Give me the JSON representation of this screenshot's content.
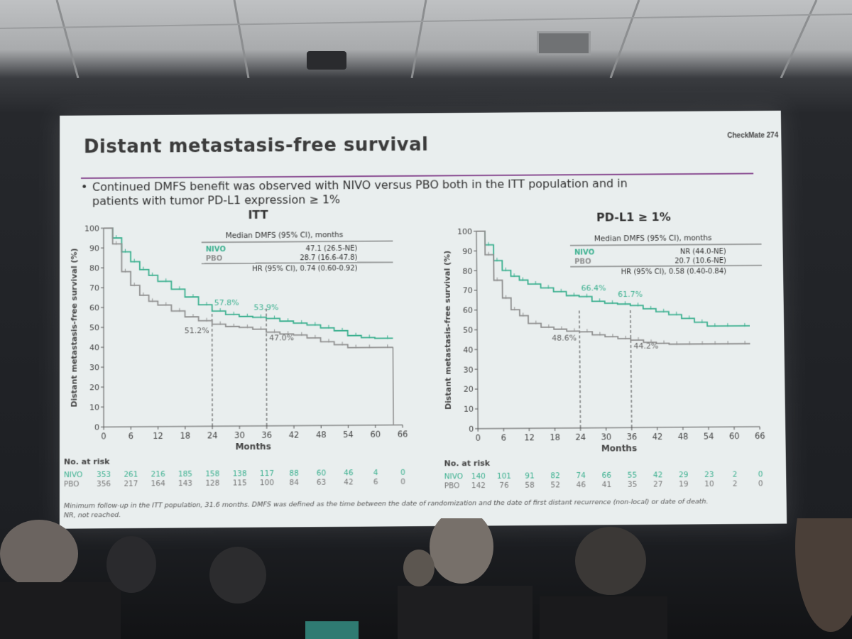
{
  "slide": {
    "brand": "CheckMate 274",
    "title": "Distant metastasis-free survival",
    "bullet_line1": "Continued DMFS benefit was observed with NIVO versus PBO both in the ITT population and in",
    "bullet_line2": "patients with tumor PD-L1 expression ≥ 1%",
    "footnote_line1": "Minimum follow-up in the ITT population, 31.6 months. DMFS was defined as the time between the date of randomization and the date of first distant recurrence (non-local) or date of death.",
    "footnote_line2": "NR, not reached."
  },
  "colors": {
    "nivo": "#3bb08f",
    "pbo": "#8f8f8f",
    "accent": "#8a4d92",
    "text": "#333333"
  },
  "chart_data": [
    {
      "type": "line",
      "title": "ITT",
      "xlabel": "Months",
      "ylabel": "Distant metastasis-free survival (%)",
      "xlim": [
        0,
        66
      ],
      "ylim": [
        0,
        100
      ],
      "xticks": [
        0,
        6,
        12,
        18,
        24,
        30,
        36,
        42,
        48,
        54,
        60,
        66
      ],
      "yticks": [
        0,
        10,
        20,
        30,
        40,
        50,
        60,
        70,
        80,
        90,
        100
      ],
      "table_header": "Median DMFS (95% CI), months",
      "hr_text": "HR (95% CI), 0.74 (0.60-0.92)",
      "series": [
        {
          "name": "NIVO",
          "median": "47.1 (26.5-NE)",
          "x": [
            0,
            2,
            4,
            6,
            8,
            10,
            12,
            15,
            18,
            21,
            24,
            27,
            30,
            33,
            36,
            39,
            42,
            45,
            48,
            51,
            54,
            57,
            60,
            64
          ],
          "y": [
            100,
            95,
            88,
            83,
            79,
            76,
            73,
            69,
            65,
            61,
            57.8,
            56,
            55,
            54.5,
            53.9,
            52.5,
            51.5,
            50.5,
            49,
            47.5,
            45,
            44,
            43.5,
            43.5
          ]
        },
        {
          "name": "PBO",
          "median": "28.7 (16.6-47.8)",
          "x": [
            0,
            2,
            4,
            6,
            8,
            10,
            12,
            15,
            18,
            21,
            24,
            27,
            30,
            33,
            36,
            39,
            42,
            45,
            48,
            51,
            54,
            57,
            60,
            64
          ],
          "y": [
            100,
            92,
            78,
            71,
            66,
            63,
            61,
            58,
            55,
            53,
            51.2,
            50,
            49.5,
            48.5,
            47.0,
            46,
            45.5,
            44,
            42,
            40.5,
            39,
            39,
            39,
            39
          ]
        }
      ],
      "annotations": {
        "nivo24": "57.8%",
        "nivo36": "53.9%",
        "pbo24": "51.2%",
        "pbo36": "47.0%"
      },
      "at_risk": {
        "label": "No. at risk",
        "rows": [
          {
            "name": "NIVO",
            "values": [
              353,
              261,
              216,
              185,
              158,
              138,
              117,
              88,
              60,
              46,
              4,
              0
            ]
          },
          {
            "name": "PBO",
            "values": [
              356,
              217,
              164,
              143,
              128,
              115,
              100,
              84,
              63,
              42,
              6,
              0
            ]
          }
        ]
      }
    },
    {
      "type": "line",
      "title": "PD-L1 ≥ 1%",
      "xlabel": "Months",
      "ylabel": "Distant metastasis-free survival (%)",
      "xlim": [
        0,
        66
      ],
      "ylim": [
        0,
        100
      ],
      "xticks": [
        0,
        6,
        12,
        18,
        24,
        30,
        36,
        42,
        48,
        54,
        60,
        66
      ],
      "yticks": [
        0,
        10,
        20,
        30,
        40,
        50,
        60,
        70,
        80,
        90,
        100
      ],
      "table_header": "Median DMFS (95% CI), months",
      "hr_text": "HR (95% CI), 0.58 (0.40-0.84)",
      "series": [
        {
          "name": "NIVO",
          "median": "NR (44.0-NE)",
          "x": [
            0,
            2,
            4,
            6,
            8,
            10,
            12,
            15,
            18,
            21,
            24,
            27,
            30,
            33,
            36,
            39,
            42,
            45,
            48,
            51,
            54,
            57,
            60,
            64
          ],
          "y": [
            100,
            93,
            85,
            80,
            77,
            75,
            73,
            71,
            69,
            67,
            66.4,
            64,
            63,
            62.5,
            61.7,
            60,
            58.5,
            57,
            55,
            53,
            51,
            51,
            51,
            51
          ]
        },
        {
          "name": "PBO",
          "median": "20.7 (10.6-NE)",
          "x": [
            0,
            2,
            4,
            6,
            8,
            10,
            12,
            15,
            18,
            21,
            24,
            27,
            30,
            33,
            36,
            39,
            42,
            45,
            48,
            51,
            54,
            57,
            60,
            64
          ],
          "y": [
            100,
            88,
            75,
            66,
            60,
            57,
            53,
            51,
            50,
            49,
            48.6,
            47,
            46,
            45,
            44.2,
            43,
            42.5,
            42,
            42,
            42,
            42,
            42,
            42,
            42
          ]
        }
      ],
      "annotations": {
        "nivo24": "66.4%",
        "nivo36": "61.7%",
        "pbo24": "48.6%",
        "pbo36": "44.2%"
      },
      "at_risk": {
        "label": "No. at risk",
        "rows": [
          {
            "name": "NIVO",
            "values": [
              140,
              101,
              91,
              82,
              74,
              66,
              55,
              42,
              29,
              23,
              2,
              0
            ]
          },
          {
            "name": "PBO",
            "values": [
              142,
              76,
              58,
              52,
              46,
              41,
              35,
              27,
              19,
              10,
              2,
              0
            ]
          }
        ]
      }
    }
  ]
}
